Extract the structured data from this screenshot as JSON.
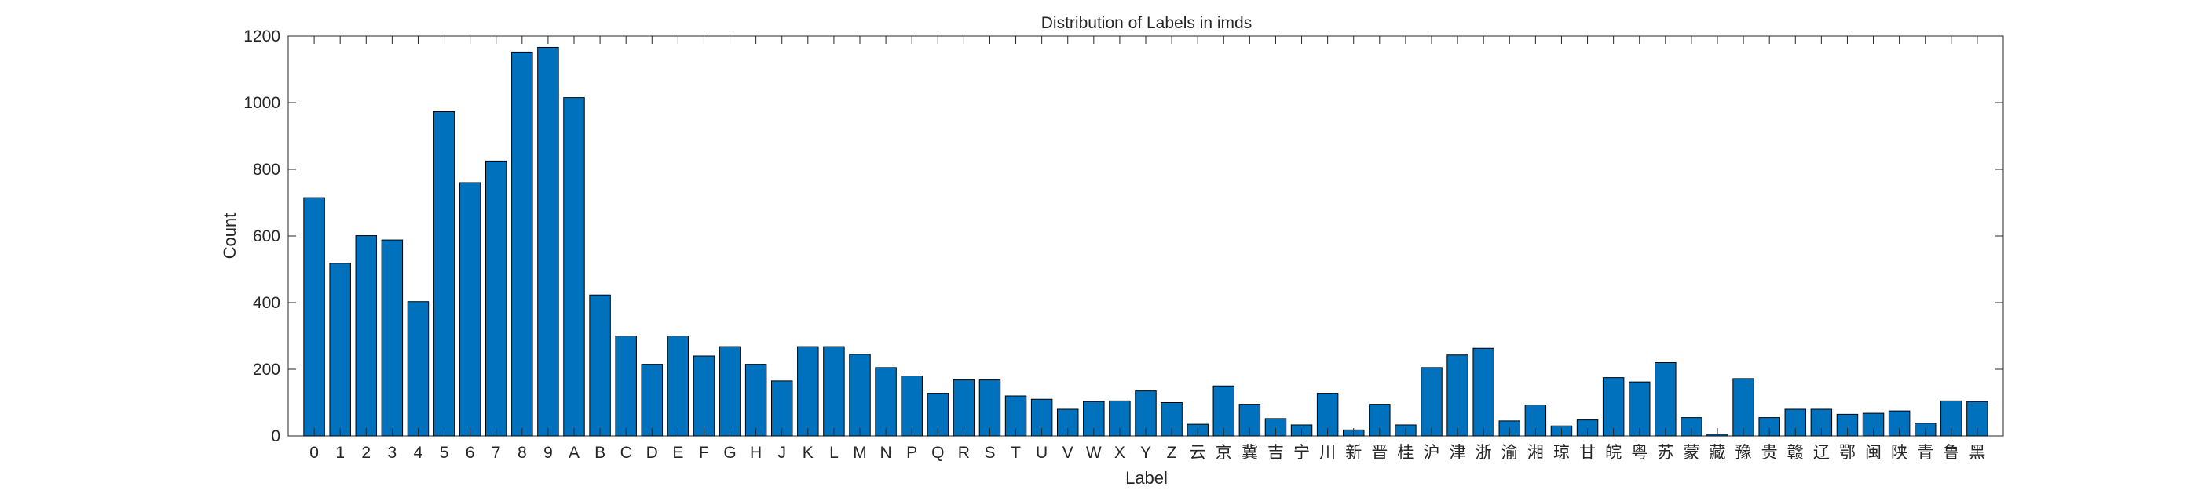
{
  "chart_data": {
    "type": "bar",
    "title": "Distribution of Labels in imds",
    "xlabel": "Label",
    "ylabel": "Count",
    "ylim": [
      0,
      1200
    ],
    "yticks": [
      0,
      200,
      400,
      600,
      800,
      1000,
      1200
    ],
    "grid": false,
    "bar_color": "#0072BD",
    "bar_edge_color": "#000000",
    "categories": [
      "0",
      "1",
      "2",
      "3",
      "4",
      "5",
      "6",
      "7",
      "8",
      "9",
      "A",
      "B",
      "C",
      "D",
      "E",
      "F",
      "G",
      "H",
      "J",
      "K",
      "L",
      "M",
      "N",
      "P",
      "Q",
      "R",
      "S",
      "T",
      "U",
      "V",
      "W",
      "X",
      "Y",
      "Z",
      "云",
      "京",
      "冀",
      "吉",
      "宁",
      "川",
      "新",
      "晋",
      "桂",
      "沪",
      "津",
      "浙",
      "渝",
      "湘",
      "琼",
      "甘",
      "皖",
      "粤",
      "苏",
      "蒙",
      "藏",
      "豫",
      "贵",
      "赣",
      "辽",
      "鄂",
      "闽",
      "陕",
      "青",
      "鲁",
      "黑"
    ],
    "values": [
      715,
      518,
      601,
      588,
      403,
      973,
      760,
      825,
      1152,
      1166,
      1015,
      423,
      300,
      215,
      300,
      240,
      268,
      215,
      165,
      268,
      268,
      245,
      205,
      180,
      128,
      168,
      168,
      120,
      110,
      80,
      103,
      105,
      135,
      100,
      35,
      150,
      95,
      52,
      33,
      128,
      18,
      95,
      33,
      205,
      243,
      263,
      45,
      93,
      30,
      48,
      175,
      162,
      220,
      55,
      5,
      172,
      55,
      80,
      80,
      65,
      68,
      75,
      38,
      105,
      103
    ]
  }
}
